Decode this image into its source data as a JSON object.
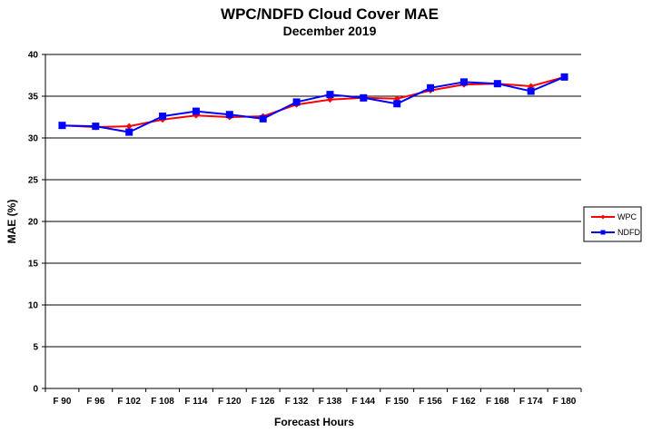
{
  "chart_data": {
    "type": "line",
    "title": "WPC/NDFD  Cloud Cover MAE",
    "subtitle": "December 2019",
    "xlabel": "Forecast Hours",
    "ylabel": "MAE  (%)",
    "categories": [
      "F 90",
      "F 96",
      "F 102",
      "F 108",
      "F 114",
      "F 120",
      "F 126",
      "F 132",
      "F 138",
      "F 144",
      "F 150",
      "F 156",
      "F 162",
      "F 168",
      "F 174",
      "F 180"
    ],
    "ylim": [
      0,
      40
    ],
    "yticks": [
      "0",
      "5",
      "10",
      "15",
      "20",
      "25",
      "30",
      "35",
      "40"
    ],
    "grid": true,
    "legend_position": "right",
    "series": [
      {
        "name": "WPC",
        "color": "#ff0000",
        "marker": "diamond",
        "values": [
          31.5,
          31.3,
          31.4,
          32.2,
          32.7,
          32.5,
          32.6,
          34.0,
          34.6,
          34.8,
          34.7,
          35.7,
          36.4,
          36.5,
          36.2,
          37.3
        ]
      },
      {
        "name": "NDFD",
        "color": "#0000ff",
        "marker": "square",
        "values": [
          31.5,
          31.4,
          30.7,
          32.6,
          33.2,
          32.8,
          32.3,
          34.3,
          35.2,
          34.8,
          34.1,
          36.0,
          36.7,
          36.5,
          35.6,
          37.3
        ]
      }
    ]
  }
}
